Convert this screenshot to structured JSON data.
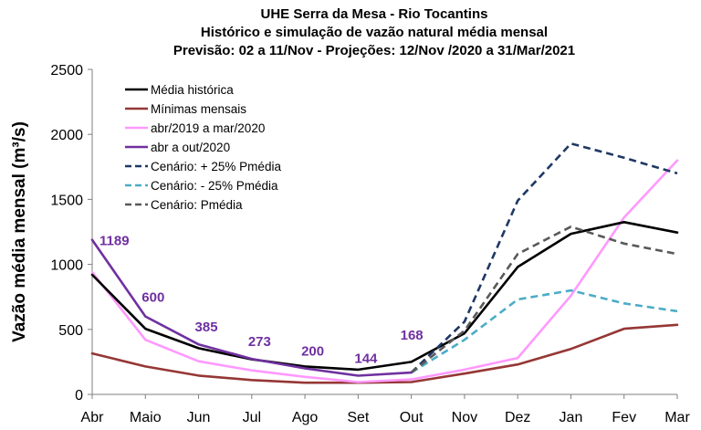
{
  "chart_data": {
    "type": "line",
    "title": [
      "UHE Serra da Mesa - Rio Tocantins",
      "Histórico e simulação de vazão natural média mensal",
      "Previsão: 02 a 11/Nov - Projeções:  12/Nov /2020 a 31/Mar/2021"
    ],
    "xlabel": "",
    "ylabel": "Vazão média mensal (m³/s)",
    "ylim": [
      0,
      2500
    ],
    "yticks": [
      0,
      500,
      1000,
      1500,
      2000,
      2500
    ],
    "categories": [
      "Abr",
      "Maio",
      "Jun",
      "Jul",
      "Ago",
      "Set",
      "Out",
      "Nov",
      "Dez",
      "Jan",
      "Fev",
      "Mar"
    ],
    "legend_position": "top-left",
    "grid": false,
    "series": [
      {
        "name": "Média histórica",
        "color": "#000000",
        "dash": "solid",
        "values": [
          920,
          505,
          355,
          270,
          215,
          190,
          250,
          470,
          980,
          1235,
          1325,
          1245
        ]
      },
      {
        "name": "Mínimas mensais",
        "color": "#953735",
        "dash": "solid",
        "values": [
          315,
          215,
          145,
          110,
          90,
          90,
          95,
          160,
          230,
          350,
          505,
          535
        ]
      },
      {
        "name": "abr/2019 a mar/2020",
        "color": "#FF99FF",
        "dash": "solid",
        "values": [
          940,
          420,
          255,
          185,
          135,
          95,
          115,
          190,
          280,
          760,
          1360,
          1800
        ]
      },
      {
        "name": "abr a out/2020",
        "color": "#7030A0",
        "dash": "solid",
        "values": [
          1189,
          600,
          385,
          273,
          200,
          144,
          168,
          null,
          null,
          null,
          null,
          null
        ]
      },
      {
        "name": "Cenário: + 25% Pmédia",
        "color": "#1F3864",
        "dash": "dashed",
        "values": [
          null,
          null,
          null,
          null,
          null,
          null,
          168,
          560,
          1490,
          1930,
          1820,
          1700
        ]
      },
      {
        "name": "Cenário: - 25% Pmédia",
        "color": "#4BACC6",
        "dash": "dashed",
        "values": [
          null,
          null,
          null,
          null,
          null,
          null,
          168,
          420,
          730,
          800,
          700,
          640
        ]
      },
      {
        "name": "Cenário: Pmédia",
        "color": "#595959",
        "dash": "dashed",
        "values": [
          null,
          null,
          null,
          null,
          null,
          null,
          168,
          490,
          1080,
          1290,
          1160,
          1080
        ]
      }
    ],
    "data_labels": [
      {
        "series": "abr a out/2020",
        "index": 0,
        "text": "1189"
      },
      {
        "series": "abr a out/2020",
        "index": 1,
        "text": "600"
      },
      {
        "series": "abr a out/2020",
        "index": 2,
        "text": "385"
      },
      {
        "series": "abr a out/2020",
        "index": 3,
        "text": "273"
      },
      {
        "series": "abr a out/2020",
        "index": 4,
        "text": "200"
      },
      {
        "series": "abr a out/2020",
        "index": 5,
        "text": "144"
      },
      {
        "series": "abr a out/2020",
        "index": 6,
        "text": "168"
      }
    ]
  }
}
